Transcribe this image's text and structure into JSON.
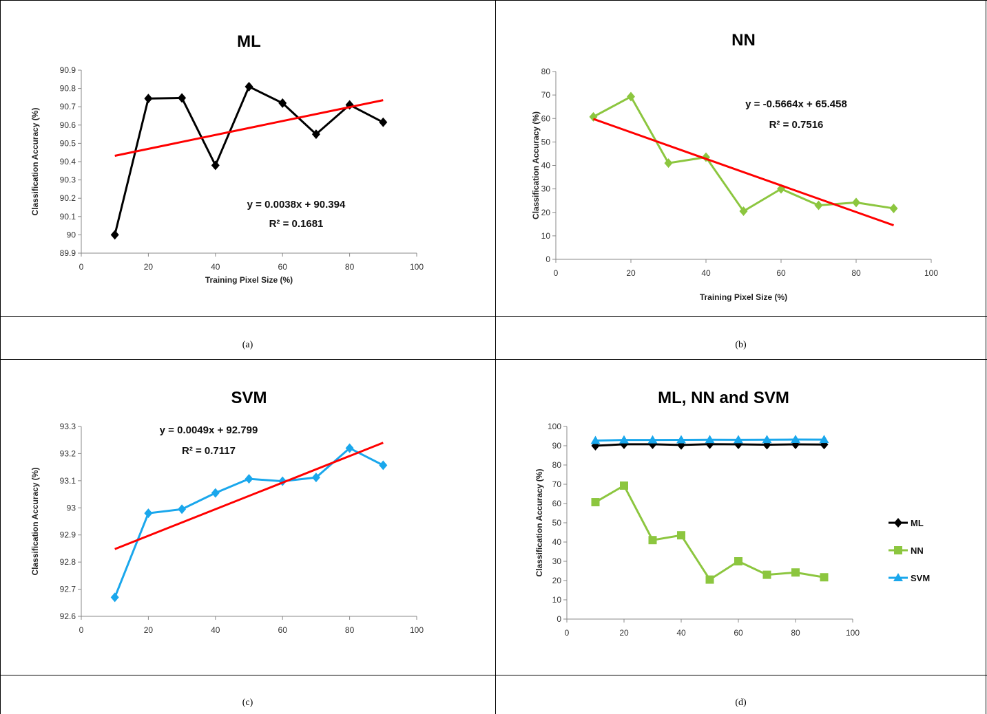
{
  "captions": [
    "(a)",
    "(b)",
    "(c)",
    "(d)"
  ],
  "chart_data": [
    {
      "type": "line",
      "title": "ML",
      "xlabel": "Training Pixel Size (%)",
      "ylabel": "Classification Accuracy (%)",
      "xlim": [
        0,
        100
      ],
      "ylim": [
        89.9,
        90.9
      ],
      "x_ticks": [
        "0",
        "20",
        "40",
        "60",
        "80",
        "100"
      ],
      "y_ticks": [
        "89.9",
        "90",
        "90.1",
        "90.2",
        "90.3",
        "90.4",
        "90.5",
        "90.6",
        "90.7",
        "90.8",
        "90.9"
      ],
      "x": [
        10,
        20,
        30,
        40,
        50,
        60,
        70,
        80,
        90
      ],
      "series": [
        {
          "values": [
            90.0,
            90.745,
            90.748,
            90.38,
            90.81,
            90.72,
            90.55,
            90.71,
            90.615
          ],
          "color": "#000000",
          "marker": "diamond"
        }
      ],
      "trendline": {
        "slope": 0.0038,
        "intercept": 90.394,
        "color": "#ff0000",
        "equation": "y = 0.0038x + 90.394",
        "r2": "R² = 0.1681"
      },
      "grid": false
    },
    {
      "type": "line",
      "title": "NN",
      "xlabel": "Training Pixel Size (%)",
      "ylabel": "Classification Accuracy (%)",
      "xlim": [
        0,
        100
      ],
      "ylim": [
        0,
        80
      ],
      "x_ticks": [
        "0",
        "20",
        "40",
        "60",
        "80",
        "100"
      ],
      "y_ticks": [
        "0",
        "10",
        "20",
        "30",
        "40",
        "50",
        "60",
        "70",
        "80"
      ],
      "x": [
        10,
        20,
        30,
        40,
        50,
        60,
        70,
        80,
        90
      ],
      "series": [
        {
          "values": [
            60.7,
            69.3,
            41.0,
            43.5,
            20.5,
            30.0,
            23.0,
            24.2,
            21.7
          ],
          "color": "#8cc63f",
          "marker": "diamond"
        }
      ],
      "trendline": {
        "slope": -0.5664,
        "intercept": 65.458,
        "color": "#ff0000",
        "equation": "y = -0.5664x + 65.458",
        "r2": "R² = 0.7516"
      },
      "grid": false
    },
    {
      "type": "line",
      "title": "SVM",
      "xlabel": "Training Pixel Size (%)",
      "ylabel": "Classification Accuracy (%)",
      "xlim": [
        0,
        100
      ],
      "ylim": [
        92.6,
        93.3
      ],
      "x_ticks": [
        "0",
        "20",
        "40",
        "60",
        "80",
        "100"
      ],
      "y_ticks": [
        "92.6",
        "92.7",
        "92.8",
        "92.9",
        "93",
        "93.1",
        "93.2",
        "93.3"
      ],
      "x": [
        10,
        20,
        30,
        40,
        50,
        60,
        70,
        80,
        90
      ],
      "series": [
        {
          "values": [
            92.67,
            92.98,
            92.995,
            93.055,
            93.107,
            93.098,
            93.112,
            93.22,
            93.157
          ],
          "color": "#1aa7ec",
          "marker": "diamond"
        }
      ],
      "trendline": {
        "slope": 0.0049,
        "intercept": 92.799,
        "color": "#ff0000",
        "equation": "y = 0.0049x + 92.799",
        "r2": "R² = 0.7117"
      },
      "grid": false
    },
    {
      "type": "line",
      "title": "ML, NN and SVM",
      "xlabel": "Training Pixel Size (%)",
      "ylabel": "Classification Accuracy (%)",
      "xlim": [
        0,
        100
      ],
      "ylim": [
        0,
        100
      ],
      "x_ticks": [
        "0",
        "20",
        "40",
        "60",
        "80",
        "100"
      ],
      "y_ticks": [
        "0",
        "10",
        "20",
        "30",
        "40",
        "50",
        "60",
        "70",
        "80",
        "90",
        "100"
      ],
      "x": [
        10,
        20,
        30,
        40,
        50,
        60,
        70,
        80,
        90
      ],
      "legend": "right",
      "series": [
        {
          "name": "ML",
          "values": [
            90.0,
            90.745,
            90.748,
            90.38,
            90.81,
            90.72,
            90.55,
            90.71,
            90.615
          ],
          "color": "#000000",
          "marker": "diamond"
        },
        {
          "name": "NN",
          "values": [
            60.7,
            69.3,
            41.0,
            43.5,
            20.5,
            30.0,
            23.0,
            24.2,
            21.7
          ],
          "color": "#8cc63f",
          "marker": "square"
        },
        {
          "name": "SVM",
          "values": [
            92.67,
            92.98,
            92.995,
            93.055,
            93.107,
            93.098,
            93.112,
            93.22,
            93.157
          ],
          "color": "#1aa7ec",
          "marker": "triangle"
        }
      ],
      "grid": false
    }
  ]
}
